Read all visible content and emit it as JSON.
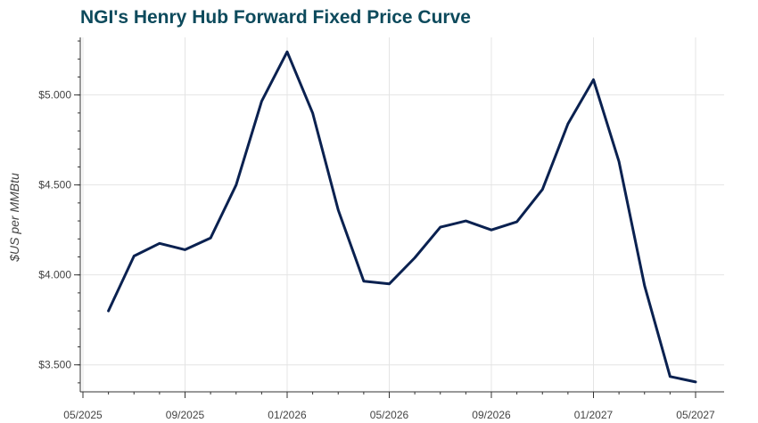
{
  "chart_data": {
    "type": "line",
    "title": "NGI's Henry Hub Forward Fixed Price Curve",
    "xlabel": "",
    "ylabel": "$US per MMBtu",
    "x": [
      "2025-06",
      "2025-07",
      "2025-08",
      "2025-09",
      "2025-10",
      "2025-11",
      "2025-12",
      "2026-01",
      "2026-02",
      "2026-03",
      "2026-04",
      "2026-05",
      "2026-06",
      "2026-07",
      "2026-08",
      "2026-09",
      "2026-10",
      "2026-11",
      "2026-12",
      "2027-01",
      "2027-02",
      "2027-03",
      "2027-04",
      "2027-05"
    ],
    "series": [
      {
        "values": [
          3.8,
          4.105,
          4.175,
          4.14,
          4.205,
          4.5,
          4.965,
          5.24,
          4.9,
          4.36,
          3.965,
          3.95,
          4.095,
          4.265,
          4.3,
          4.25,
          4.295,
          4.475,
          4.84,
          5.085,
          4.63,
          3.94,
          3.435,
          3.405
        ],
        "color": "#0a2150"
      }
    ],
    "xlim": [
      "2025-05",
      "2027-05"
    ],
    "ylim": [
      3.35,
      5.32
    ],
    "x_ticks": [
      "05/2025",
      "09/2025",
      "01/2026",
      "05/2026",
      "09/2026",
      "01/2027",
      "05/2027"
    ],
    "x_tick_values": [
      "2025-05",
      "2025-09",
      "2026-01",
      "2026-05",
      "2026-09",
      "2027-01",
      "2027-05"
    ],
    "y_ticks": [
      "$3.500",
      "$4.000",
      "$4.500",
      "$5.000"
    ],
    "y_tick_values": [
      3.5,
      4.0,
      4.5,
      5.0
    ],
    "y_minor_step": 0.1,
    "x_minor_ticks": "monthly",
    "grid": true,
    "legend": "none"
  }
}
